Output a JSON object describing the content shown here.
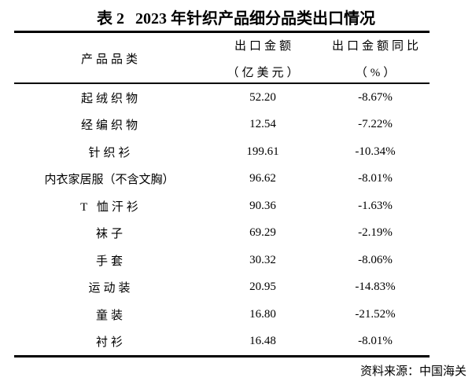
{
  "page": {
    "title": {
      "label": "表 2",
      "text": "2023 年针织产品细分品类出口情况"
    },
    "source_note": "资料来源：中国海关"
  },
  "table": {
    "columns": [
      {
        "title": "产品品类",
        "unit": ""
      },
      {
        "title": "出口金额",
        "unit": "（亿美元）"
      },
      {
        "title": "出口金额同比",
        "unit": "（%）"
      }
    ],
    "rows": [
      {
        "category": "起绒织物",
        "amount": "52.20",
        "yoy": "-8.67%"
      },
      {
        "category": "经编织物",
        "amount": "12.54",
        "yoy": "-7.22%"
      },
      {
        "category": "针织衫",
        "amount": "199.61",
        "yoy": "-10.34%"
      },
      {
        "category": "内衣家居服（不含文胸）",
        "amount": "96.62",
        "yoy": "-8.01%"
      },
      {
        "category": "T 恤汗衫",
        "amount": "90.36",
        "yoy": "-1.63%"
      },
      {
        "category": "袜子",
        "amount": "69.29",
        "yoy": "-2.19%"
      },
      {
        "category": "手套",
        "amount": "30.32",
        "yoy": "-8.06%"
      },
      {
        "category": "运动装",
        "amount": "20.95",
        "yoy": "-14.83%"
      },
      {
        "category": "童装",
        "amount": "16.80",
        "yoy": "-21.52%"
      },
      {
        "category": "衬衫",
        "amount": "16.48",
        "yoy": "-8.01%"
      }
    ]
  },
  "colors": {
    "text": "#000000",
    "background": "#ffffff",
    "rule": "#000000"
  }
}
